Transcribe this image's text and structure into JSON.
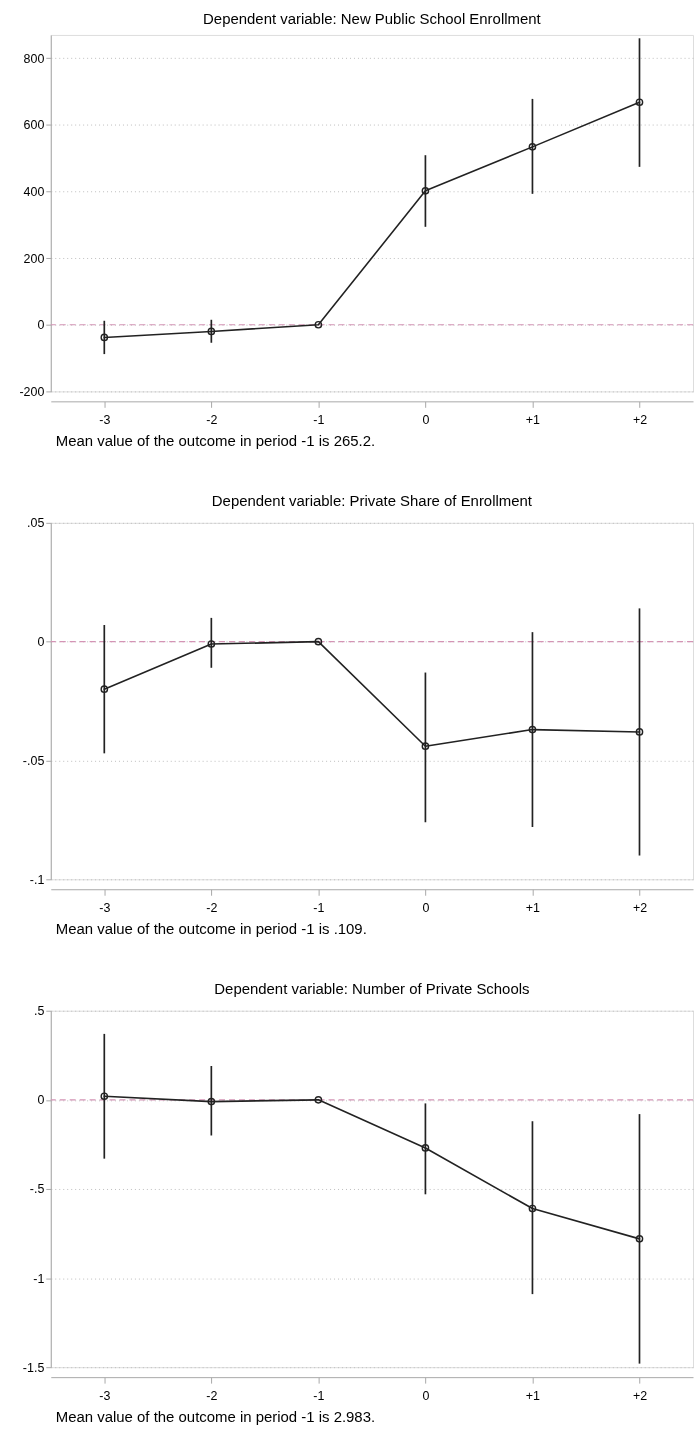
{
  "chart_data": [
    {
      "type": "line",
      "title": "Dependent variable: New Public School Enrollment",
      "categories": [
        "-3",
        "-2",
        "-1",
        "0",
        "+1",
        "+2"
      ],
      "series": [
        {
          "color": "#222222",
          "values": [
            -38,
            -20,
            0,
            402,
            534,
            668
          ],
          "errors": [
            [
              -88,
              12
            ],
            [
              -54,
              15
            ],
            null,
            [
              294,
              509
            ],
            [
              393,
              678
            ],
            [
              474,
              860
            ]
          ]
        }
      ],
      "ylim": [
        -200,
        870
      ],
      "yticks": [
        -200,
        0,
        200,
        400,
        600,
        800
      ],
      "grid": "y",
      "marker": "circle",
      "line_style": "solid",
      "ref_lines": [
        {
          "axis": "y",
          "value": 0,
          "color": "#d494b5",
          "line_style": "dashed"
        }
      ],
      "annotations": [
        "Mean value of the outcome in period -1 is 265.2."
      ]
    },
    {
      "type": "line",
      "title": "Dependent variable: Private Share of Enrollment",
      "categories": [
        "-3",
        "-2",
        "-1",
        "0",
        "+1",
        "+2"
      ],
      "series": [
        {
          "color": "#222222",
          "values": [
            -0.02,
            -0.001,
            0,
            -0.044,
            -0.037,
            -0.038
          ],
          "errors": [
            [
              -0.047,
              0.007
            ],
            [
              -0.011,
              0.01
            ],
            null,
            [
              -0.076,
              -0.013
            ],
            [
              -0.078,
              0.004
            ],
            [
              -0.09,
              0.014
            ]
          ]
        }
      ],
      "ylim": [
        -0.1,
        0.05
      ],
      "yticks": [
        {
          "value": -0.1,
          "label": "-.1"
        },
        {
          "value": -0.05,
          "label": "-.05"
        },
        0,
        {
          "value": 0.05,
          "label": ".05"
        }
      ],
      "grid": "y",
      "marker": "circle",
      "line_style": "solid",
      "ref_lines": [
        {
          "axis": "y",
          "value": 0,
          "color": "#d494b5",
          "line_style": "dashed"
        }
      ],
      "annotations": [
        "Mean value of the outcome in period -1 is .109."
      ]
    },
    {
      "type": "line",
      "title": "Dependent variable: Number of Private Schools",
      "categories": [
        "-3",
        "-2",
        "-1",
        "0",
        "+1",
        "+2"
      ],
      "series": [
        {
          "color": "#222222",
          "values": [
            0.02,
            -0.01,
            0,
            -0.27,
            -0.61,
            -0.78
          ],
          "errors": [
            [
              -0.33,
              0.37
            ],
            [
              -0.2,
              0.19
            ],
            null,
            [
              -0.53,
              -0.02
            ],
            [
              -1.09,
              -0.12
            ],
            [
              -1.48,
              -0.08
            ]
          ]
        }
      ],
      "ylim": [
        -1.5,
        0.5
      ],
      "yticks": [
        {
          "value": -1.5,
          "label": "-1.5"
        },
        -1,
        {
          "value": -0.5,
          "label": "-.5"
        },
        0,
        {
          "value": 0.5,
          "label": ".5"
        }
      ],
      "grid": "y",
      "marker": "circle",
      "line_style": "solid",
      "ref_lines": [
        {
          "axis": "y",
          "value": 0,
          "color": "#d494b5",
          "line_style": "dashed"
        }
      ],
      "annotations": [
        "Mean value of the outcome in period -1 is 2.983."
      ]
    }
  ]
}
